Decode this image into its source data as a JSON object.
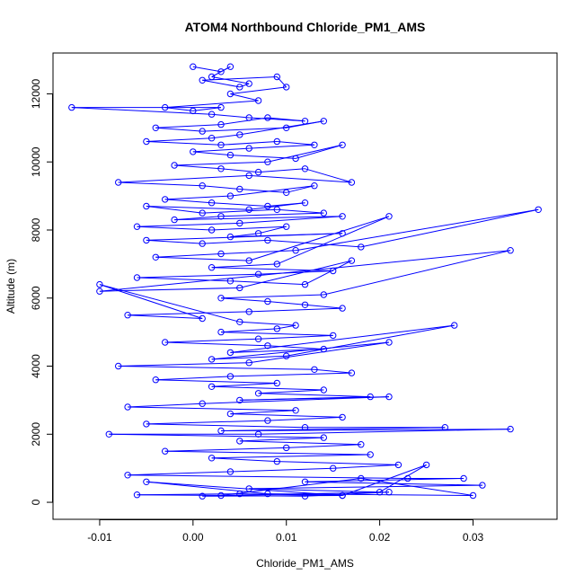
{
  "chart_data": {
    "type": "scatter",
    "title": "ATOM4 Northbound Chloride_PM1_AMS",
    "xlabel": "Chloride_PM1_AMS",
    "ylabel": "Altitude (m)",
    "xlim": [
      -0.015,
      0.039
    ],
    "ylim": [
      -500,
      13200
    ],
    "x_ticks": [
      -0.01,
      0.0,
      0.01,
      0.02,
      0.03
    ],
    "x_tick_labels": [
      "-0.01",
      "0.00",
      "0.01",
      "0.02",
      "0.03"
    ],
    "y_ticks": [
      0,
      2000,
      4000,
      6000,
      8000,
      10000,
      12000
    ],
    "y_tick_labels": [
      "0",
      "2000",
      "4000",
      "6000",
      "8000",
      "10000",
      "12000"
    ],
    "connected": true,
    "marker": "open-circle",
    "color": "#0000ff",
    "series": [
      {
        "x": [
          0.0,
          0.003,
          0.004,
          0.002,
          0.006,
          0.005,
          0.001,
          0.009,
          0.01,
          0.004,
          0.007,
          -0.003,
          0.0,
          0.003,
          -0.013,
          0.002,
          0.006,
          0.012,
          0.008,
          0.003,
          -0.004,
          0.001,
          0.01,
          0.014,
          0.005,
          0.002,
          -0.005,
          0.003,
          0.009,
          0.013,
          0.006,
          0.0,
          0.004,
          0.011,
          0.016,
          0.008,
          -0.002,
          0.003,
          0.007,
          0.012,
          0.017,
          0.006,
          -0.008,
          0.001,
          0.005,
          0.01,
          0.013,
          0.004,
          -0.003,
          0.002,
          0.008,
          0.012,
          0.006,
          -0.005,
          0.001,
          0.009,
          0.014,
          0.003,
          -0.002,
          0.016,
          0.005,
          -0.006,
          0.002,
          0.01,
          0.007,
          0.004,
          0.016,
          -0.005,
          0.001,
          0.008,
          0.018,
          0.037,
          0.011,
          0.003,
          -0.004,
          0.006,
          0.021,
          0.009,
          0.002,
          0.015,
          0.007,
          -0.006,
          0.004,
          0.012,
          0.017,
          0.005,
          -0.01,
          0.034,
          0.014,
          0.003,
          0.008,
          0.012,
          0.016,
          0.006,
          -0.007,
          0.001,
          -0.01,
          0.005,
          0.011,
          0.009,
          0.003,
          0.015,
          0.007,
          -0.003,
          0.008,
          0.014,
          0.004,
          0.028,
          0.01,
          0.002,
          0.021,
          0.006,
          -0.008,
          0.013,
          0.017,
          0.004,
          -0.004,
          0.009,
          0.002,
          0.014,
          0.007,
          0.019,
          0.005,
          0.021,
          0.001,
          -0.007,
          0.011,
          0.004,
          0.016,
          0.008,
          -0.005,
          0.012,
          0.027,
          0.003,
          0.034,
          0.007,
          -0.009,
          0.014,
          0.005,
          0.018,
          0.01,
          -0.003,
          0.019,
          0.002,
          0.009,
          0.022,
          0.015,
          0.004,
          -0.007,
          0.023,
          0.029,
          0.012,
          0.031,
          0.006,
          0.02,
          0.025,
          0.016,
          -0.005,
          0.008,
          0.03,
          0.018,
          0.003,
          0.021,
          0.012,
          -0.006,
          0.005,
          0.016,
          0.001
        ],
        "y": [
          12800,
          12650,
          12800,
          12500,
          12300,
          12200,
          12400,
          12500,
          12200,
          12000,
          11800,
          11600,
          11500,
          11600,
          11600,
          11400,
          11300,
          11200,
          11300,
          11100,
          11000,
          10900,
          11000,
          11200,
          10800,
          10700,
          10600,
          10500,
          10600,
          10500,
          10400,
          10300,
          10200,
          10100,
          10500,
          10000,
          9900,
          9800,
          9700,
          9800,
          9400,
          9600,
          9400,
          9300,
          9200,
          9100,
          9300,
          9000,
          8900,
          8800,
          8700,
          8800,
          8600,
          8700,
          8500,
          8600,
          8500,
          8400,
          8300,
          8400,
          8200,
          8100,
          8000,
          8100,
          7900,
          7800,
          7900,
          7700,
          7600,
          7700,
          7500,
          8600,
          7400,
          7300,
          7200,
          7100,
          8400,
          7000,
          6900,
          6800,
          6700,
          6600,
          6500,
          6400,
          7100,
          6300,
          6200,
          7400,
          6100,
          6000,
          5900,
          5800,
          5700,
          5600,
          5500,
          5400,
          6400,
          5300,
          5200,
          5100,
          5000,
          4900,
          4800,
          4700,
          4600,
          4500,
          4400,
          5200,
          4300,
          4200,
          4700,
          4100,
          4000,
          3900,
          3800,
          3700,
          3600,
          3500,
          3400,
          3300,
          3200,
          3100,
          3000,
          3100,
          2900,
          2800,
          2700,
          2600,
          2500,
          2400,
          2300,
          2200,
          2200,
          2100,
          2150,
          2000,
          2000,
          1900,
          1800,
          1700,
          1600,
          1500,
          1400,
          1300,
          1200,
          1100,
          1000,
          900,
          800,
          700,
          700,
          600,
          500,
          400,
          300,
          1100,
          200,
          600,
          250,
          200,
          700,
          200,
          300,
          180,
          220,
          250,
          200,
          180
        ]
      }
    ]
  }
}
